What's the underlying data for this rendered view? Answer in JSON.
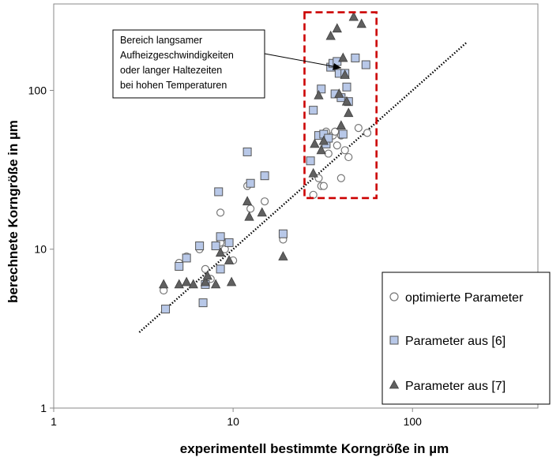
{
  "chart_data": {
    "type": "scatter",
    "x_scale": "log",
    "y_scale": "log",
    "xlabel": "experimentell bestimmte Korngröße in µm",
    "ylabel": "berechnete Korngröße in µm",
    "xlim": [
      1,
      500
    ],
    "ylim": [
      1,
      350
    ],
    "x_ticks": [
      1,
      10,
      100
    ],
    "y_ticks": [
      1,
      10,
      100
    ],
    "x_tick_labels": [
      "1",
      "10",
      "100"
    ],
    "y_tick_labels": [
      "1",
      "10",
      "100"
    ],
    "grid": false,
    "legend_position": "bottom-right",
    "trendline": {
      "style": "dotted",
      "color": "#000000",
      "x": [
        3,
        200
      ],
      "y": [
        3,
        200
      ]
    },
    "highlight_region": {
      "color": "#cc0000",
      "x": [
        25,
        63
      ],
      "y": [
        21,
        310
      ],
      "annotation": [
        "Bereich langsamer",
        "Aufheizgeschwindigkeiten",
        "oder langer Haltezeiten",
        "bei hohen Temperaturen"
      ]
    },
    "series": [
      {
        "name": "optimierte Parameter",
        "marker": "circle",
        "color": "#ffffff",
        "edge": "#777777",
        "points": [
          [
            4.1,
            5.5
          ],
          [
            5,
            8.2
          ],
          [
            5.5,
            9
          ],
          [
            6.5,
            10
          ],
          [
            7,
            7.5
          ],
          [
            7.5,
            6.5
          ],
          [
            8.5,
            17
          ],
          [
            8.5,
            11
          ],
          [
            9,
            10
          ],
          [
            9.5,
            11
          ],
          [
            10,
            8.5
          ],
          [
            12,
            25
          ],
          [
            12.5,
            18
          ],
          [
            15,
            20
          ],
          [
            19,
            11.5
          ],
          [
            28,
            22
          ],
          [
            30,
            28
          ],
          [
            31,
            25
          ],
          [
            32,
            25
          ],
          [
            33,
            55
          ],
          [
            34,
            40
          ],
          [
            36,
            52
          ],
          [
            37,
            55
          ],
          [
            38,
            45
          ],
          [
            40,
            28
          ],
          [
            40,
            52
          ],
          [
            42,
            42
          ],
          [
            44,
            38
          ],
          [
            50,
            58
          ],
          [
            56,
            54
          ]
        ]
      },
      {
        "name": "Parameter aus [6]",
        "marker": "square",
        "color": "#b8c8e8",
        "edge": "#555555",
        "points": [
          [
            4.2,
            4.2
          ],
          [
            5,
            7.8
          ],
          [
            5.5,
            8.8
          ],
          [
            6.5,
            10.5
          ],
          [
            6.8,
            4.6
          ],
          [
            7,
            6
          ],
          [
            8,
            10.5
          ],
          [
            8.3,
            23
          ],
          [
            8.5,
            7.5
          ],
          [
            8.5,
            12
          ],
          [
            9.5,
            11
          ],
          [
            12,
            41
          ],
          [
            12.5,
            26
          ],
          [
            15,
            29
          ],
          [
            19,
            12.5
          ],
          [
            27,
            36
          ],
          [
            28,
            75
          ],
          [
            30,
            52
          ],
          [
            31,
            102
          ],
          [
            32,
            53
          ],
          [
            33,
            46
          ],
          [
            34,
            50
          ],
          [
            35,
            140
          ],
          [
            36,
            148
          ],
          [
            37,
            95
          ],
          [
            38,
            152
          ],
          [
            39,
            128
          ],
          [
            40,
            90
          ],
          [
            41,
            53
          ],
          [
            42,
            128
          ],
          [
            43,
            105
          ],
          [
            44,
            85
          ],
          [
            48,
            160
          ],
          [
            55,
            145
          ]
        ]
      },
      {
        "name": "Parameter aus [7]",
        "marker": "triangle",
        "color": "#606060",
        "edge": "#404040",
        "points": [
          [
            4.1,
            6
          ],
          [
            5,
            6
          ],
          [
            5.5,
            6.2
          ],
          [
            6,
            6
          ],
          [
            7,
            6.2
          ],
          [
            7.2,
            6.8
          ],
          [
            8,
            6
          ],
          [
            8.5,
            9.5
          ],
          [
            9.5,
            8.5
          ],
          [
            9.8,
            6.2
          ],
          [
            12,
            20
          ],
          [
            12.3,
            16
          ],
          [
            14.5,
            17
          ],
          [
            19,
            9
          ],
          [
            28,
            30
          ],
          [
            28.5,
            46
          ],
          [
            30,
            93
          ],
          [
            31,
            42
          ],
          [
            32,
            48
          ],
          [
            35,
            220
          ],
          [
            38,
            245
          ],
          [
            39,
            95
          ],
          [
            40,
            60
          ],
          [
            41,
            160
          ],
          [
            42,
            125
          ],
          [
            43,
            85
          ],
          [
            44,
            72
          ],
          [
            47,
            290
          ],
          [
            52,
            262
          ]
        ]
      }
    ]
  },
  "ui": {
    "legend_marker_colors": {
      "circle": "#ffffff",
      "square": "#b8c8e8",
      "triangle": "#606060"
    }
  }
}
